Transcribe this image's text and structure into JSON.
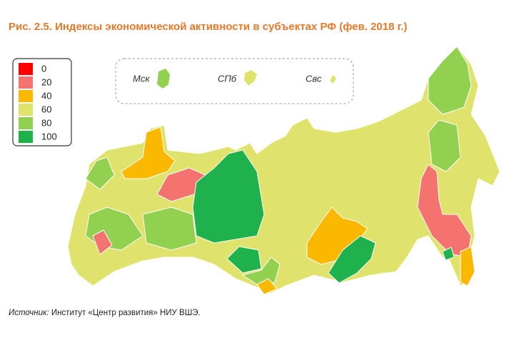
{
  "title": "Рис. 2.5. Индексы экономической активности в субъектах РФ (фев. 2018 г.)",
  "legend": [
    {
      "value": 0,
      "color": "#ff0000"
    },
    {
      "value": 20,
      "color": "#f4736f"
    },
    {
      "value": 40,
      "color": "#fbb800"
    },
    {
      "value": 60,
      "color": "#dfe36b"
    },
    {
      "value": 80,
      "color": "#92d050"
    },
    {
      "value": 100,
      "color": "#1fb14c"
    }
  ],
  "insets": [
    "Мск",
    "СПб",
    "Свс"
  ],
  "source": {
    "label": "Источник:",
    "text": "Институт «Центр развития» НИУ ВШЭ."
  }
}
